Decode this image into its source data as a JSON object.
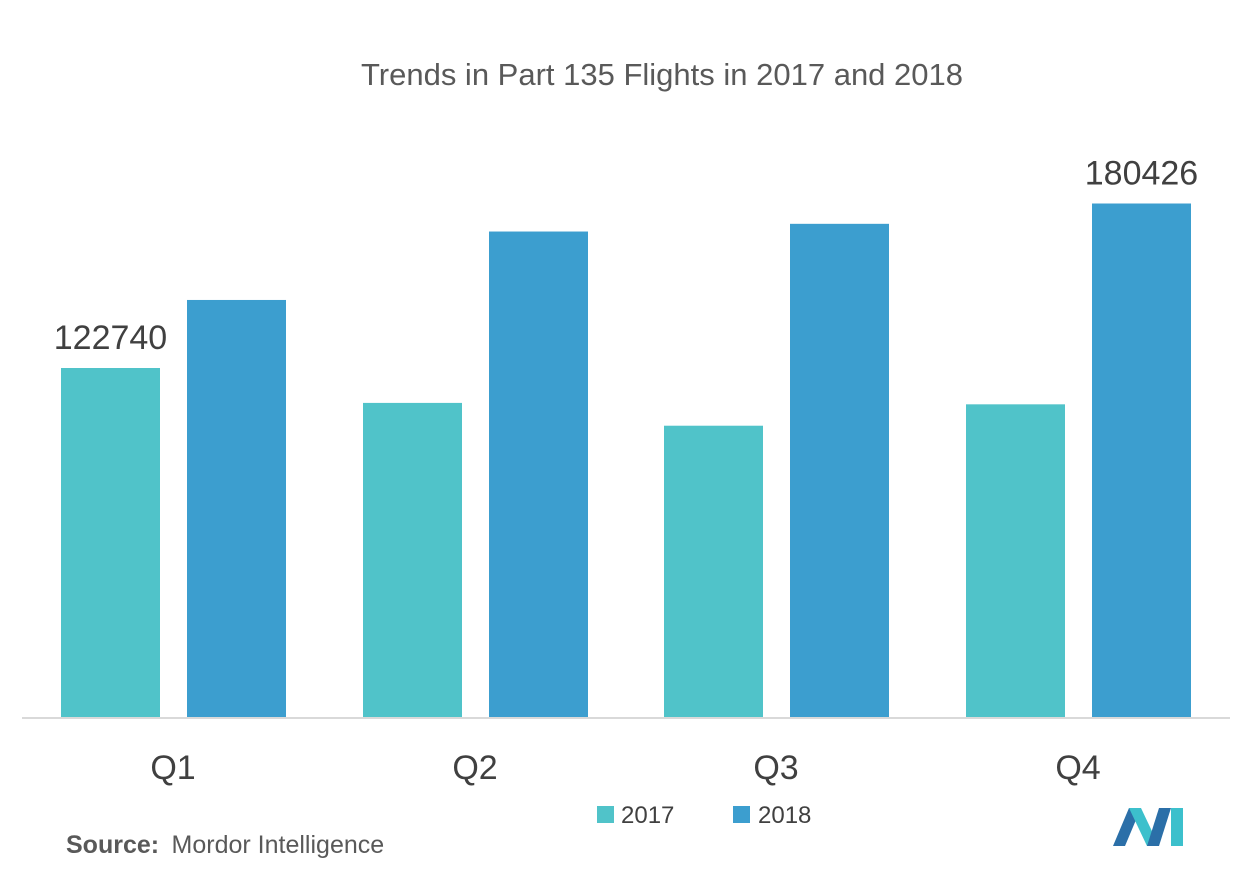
{
  "chart_data": {
    "type": "bar",
    "title": "Trends in Part 135 Flights in 2017 and 2018",
    "xlabel": "",
    "ylabel": "",
    "categories": [
      "Q1",
      "Q2",
      "Q3",
      "Q4"
    ],
    "series": [
      {
        "name": "2017",
        "color": "#50C3C9",
        "values": [
          122740,
          110500,
          102500,
          110000
        ]
      },
      {
        "name": "2018",
        "color": "#3C9ECF",
        "values": [
          146600,
          170600,
          173300,
          180426
        ]
      }
    ],
    "data_labels": [
      {
        "series": "2017",
        "category": "Q1",
        "text": "122740"
      },
      {
        "series": "2018",
        "category": "Q4",
        "text": "180426"
      }
    ],
    "ylim": [
      0,
      200000
    ],
    "grid": false,
    "legend_position": "bottom-center"
  },
  "source": {
    "prefix": "Source:",
    "text": "Mordor Intelligence"
  },
  "logo": {
    "name": "mordor-intelligence-logo",
    "colors": [
      "#2B6FA8",
      "#3CC0CC"
    ]
  }
}
